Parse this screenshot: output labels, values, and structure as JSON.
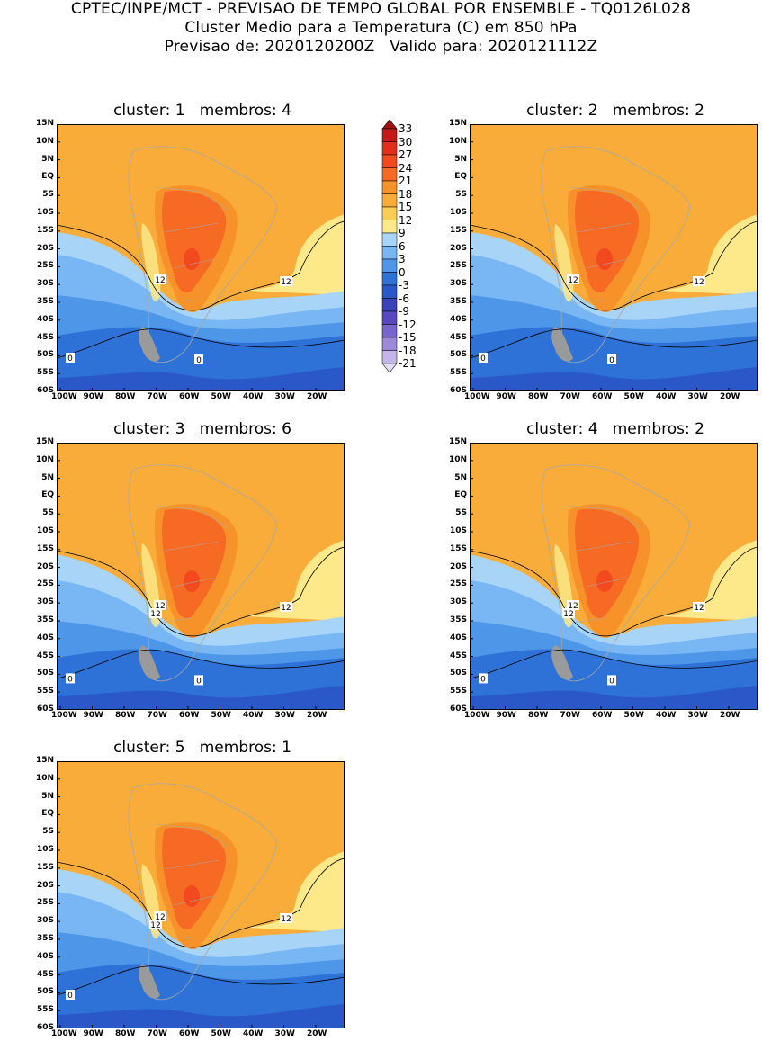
{
  "header": {
    "line1": "CPTEC/INPE/MCT - PREVISAO DE TEMPO GLOBAL POR ENSEMBLE - TQ0126L028",
    "line2": "Cluster Medio para a Temperatura (C) em 850 hPa",
    "line3": "Previsao de: 2020120200Z   Valido para: 2020121112Z"
  },
  "lat_ticks": [
    "15N",
    "10N",
    "5N",
    "EQ",
    "5S",
    "10S",
    "15S",
    "20S",
    "25S",
    "30S",
    "35S",
    "40S",
    "45S",
    "50S",
    "55S",
    "60S"
  ],
  "lon_ticks": [
    "100W",
    "90W",
    "80W",
    "70W",
    "60W",
    "50W",
    "40W",
    "30W",
    "20W"
  ],
  "colorbar": {
    "labels": [
      "33",
      "30",
      "27",
      "24",
      "21",
      "18",
      "15",
      "12",
      "9",
      "6",
      "3",
      "0",
      "-3",
      "-6",
      "-9",
      "-12",
      "-15",
      "-18",
      "-21"
    ],
    "colors": [
      "#a01010",
      "#c41a1a",
      "#e0301c",
      "#f24a1e",
      "#f76a24",
      "#f7922a",
      "#f9ac3a",
      "#fbcd54",
      "#fde88a",
      "#a8d4f8",
      "#78b6f4",
      "#4e96e8",
      "#2e72d8",
      "#2a58c8",
      "#3a44b8",
      "#5848c2",
      "#7866cc",
      "#9c8ad8",
      "#c4b4e8",
      "#e4dcf4"
    ]
  },
  "panels": [
    {
      "title": "cluster: 1   membros: 4",
      "labels12": [
        "12",
        "12"
      ],
      "labels0": [
        "0",
        "0"
      ]
    },
    {
      "title": "cluster: 2   membros: 2",
      "labels12": [
        "12",
        "12"
      ],
      "labels0": [
        "0",
        "0"
      ]
    },
    {
      "title": "cluster: 3   membros: 6",
      "labels12": [
        "12",
        "12",
        "12"
      ],
      "labels0": [
        "0",
        "0"
      ]
    },
    {
      "title": "cluster: 4   membros: 2",
      "labels12": [
        "12",
        "12",
        "12"
      ],
      "labels0": [
        "0",
        "0"
      ]
    },
    {
      "title": "cluster: 5   membros: 1",
      "labels12": [
        "12",
        "12",
        "12"
      ],
      "labels0": [
        "0"
      ]
    }
  ]
}
